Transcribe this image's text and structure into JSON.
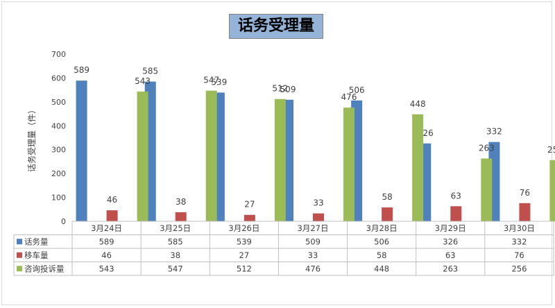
{
  "chart_data": {
    "type": "bar",
    "title": "话务受理量",
    "ylabel": "话务受理量（件）",
    "ylim": [
      0,
      700
    ],
    "yticks": [
      0,
      100,
      200,
      300,
      400,
      500,
      600,
      700
    ],
    "categories": [
      "3月24日",
      "3月25日",
      "3月26日",
      "3月27日",
      "3月28日",
      "3月29日",
      "3月30日"
    ],
    "series": [
      {
        "name": "话务量",
        "color": "#4f81bd",
        "values": [
          589,
          585,
          539,
          509,
          506,
          326,
          332
        ]
      },
      {
        "name": "移车量",
        "color": "#c0504d",
        "values": [
          46,
          38,
          27,
          33,
          58,
          63,
          76
        ]
      },
      {
        "name": "咨询投诉量",
        "color": "#9bbb59",
        "values": [
          543,
          547,
          512,
          476,
          448,
          263,
          256
        ]
      }
    ],
    "grid": false,
    "legend": "data-table"
  }
}
